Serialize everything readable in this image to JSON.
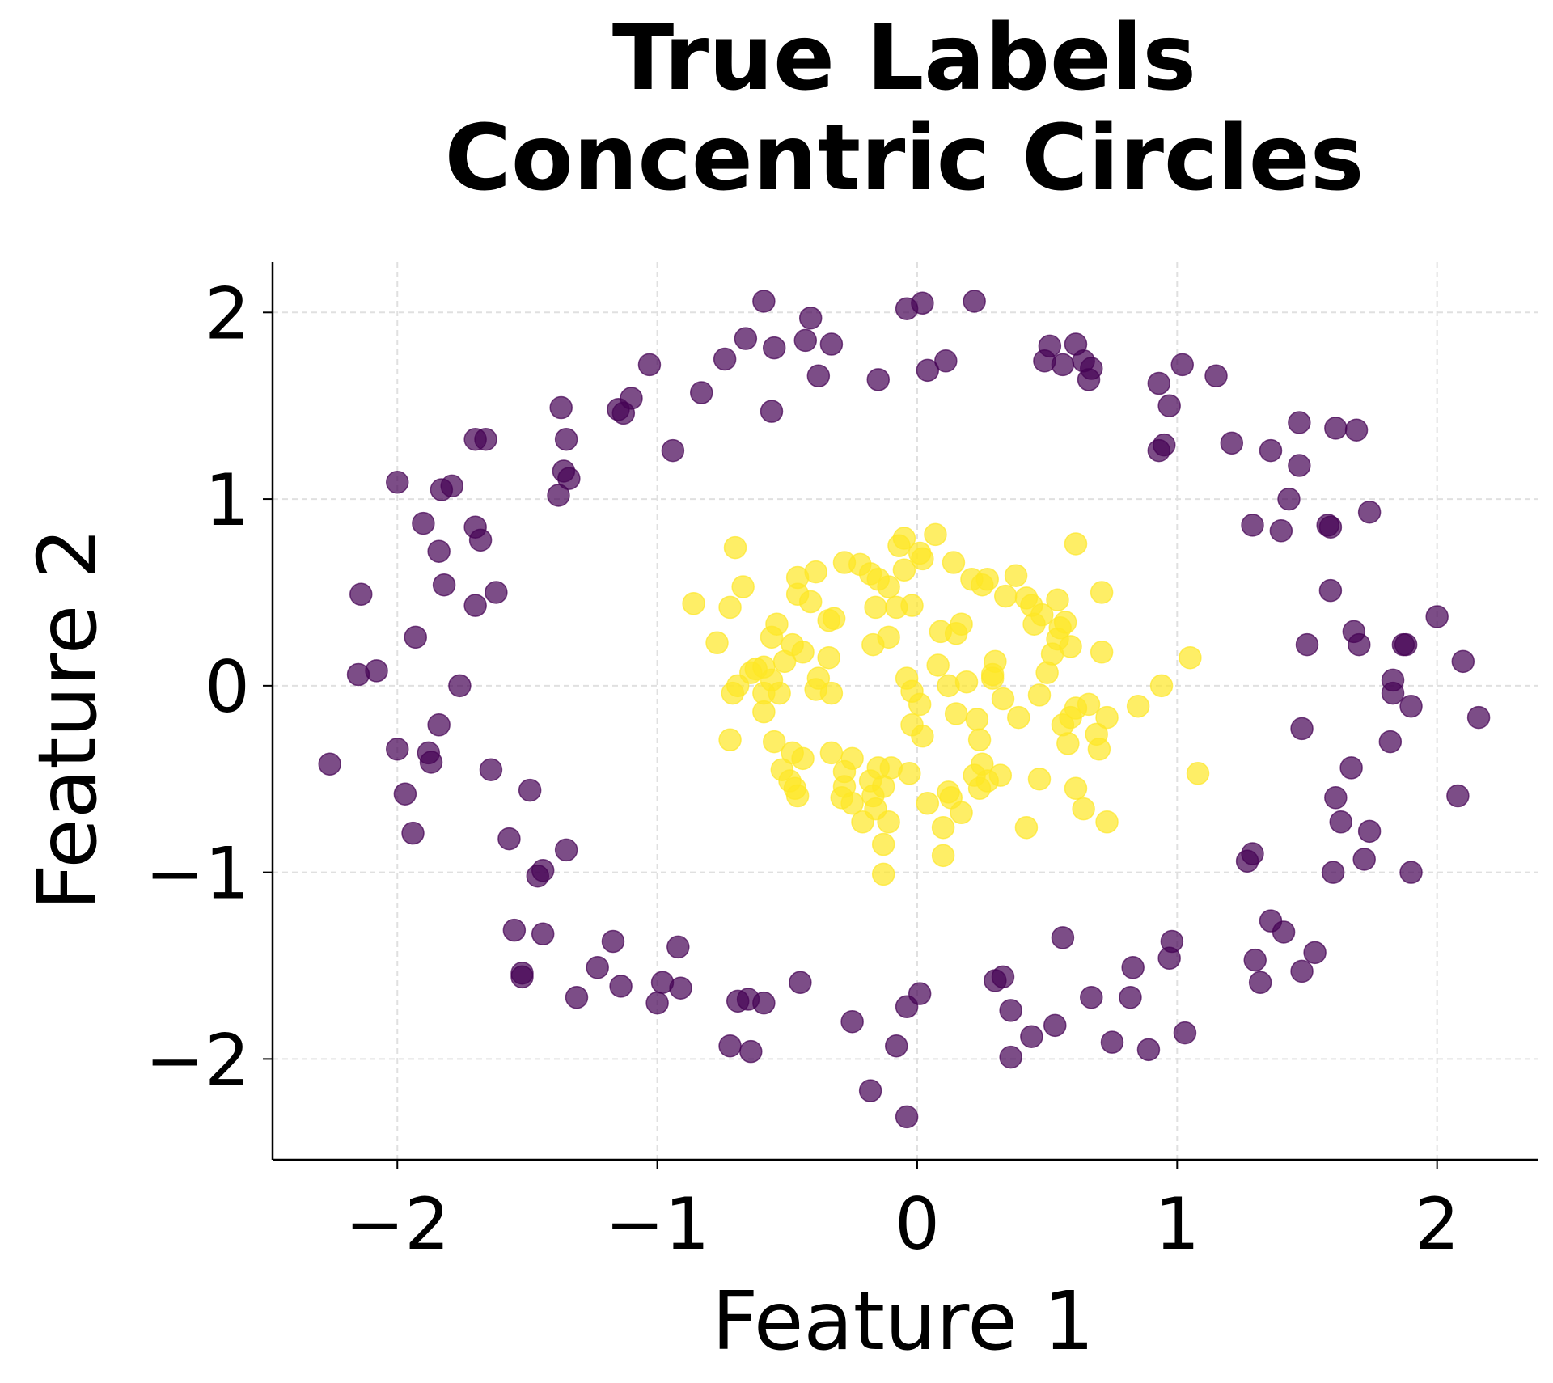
{
  "chart_data": {
    "type": "scatter",
    "title": "True Labels\nConcentric Circles",
    "xlabel": "Feature 1",
    "ylabel": "Feature 2",
    "xlim": [
      -2.48,
      2.39
    ],
    "ylim": [
      -2.54,
      2.27
    ],
    "xticks": [
      {
        "value": -2,
        "label": "−2"
      },
      {
        "value": -1,
        "label": "−1"
      },
      0,
      1,
      2
    ],
    "yticks": [
      {
        "value": -2,
        "label": "−2"
      },
      {
        "value": -1,
        "label": "−1"
      },
      0,
      1,
      2
    ],
    "grid": true,
    "alpha": 0.7,
    "series": [
      {
        "color": "#440154",
        "x": [
          -0.59,
          -0.04,
          0.02,
          0.22,
          -0.41,
          -0.66,
          -0.55,
          -0.43,
          -0.33,
          -1.03,
          -0.74,
          -0.38,
          -0.15,
          0.04,
          0.11,
          0.51,
          0.61,
          0.49,
          0.56,
          0.64,
          0.67,
          0.66,
          0.93,
          1.02,
          1.15,
          0.97,
          -0.83,
          -1.1,
          -1.15,
          -1.13,
          -0.56,
          -1.37,
          -1.35,
          -0.94,
          -1.7,
          -1.66,
          -1.36,
          -1.34,
          -1.38,
          -2.0,
          -1.83,
          -1.79,
          -1.9,
          -1.7,
          -1.68,
          -1.84,
          -1.82,
          -1.7,
          -1.62,
          -2.14,
          -1.93,
          -2.15,
          -2.08,
          -1.76,
          -1.84,
          -2.0,
          -1.88,
          -1.87,
          -2.26,
          -1.97,
          -1.64,
          -1.49,
          -1.94,
          -1.57,
          -1.35,
          -1.44,
          -1.46,
          0.93,
          0.95,
          1.21,
          1.36,
          1.47,
          1.61,
          1.69,
          1.47,
          1.43,
          1.29,
          1.4,
          1.58,
          1.59,
          1.74,
          1.59,
          2.0,
          1.5,
          1.68,
          1.7,
          1.87,
          1.88,
          2.1,
          1.83,
          1.83,
          1.9,
          2.16,
          1.48,
          1.82,
          1.67,
          2.08,
          1.61,
          1.63,
          1.74,
          1.72,
          1.6,
          1.9,
          1.29,
          1.27,
          -1.55,
          -1.44,
          -1.52,
          -1.52,
          -1.23,
          -1.17,
          -1.31,
          -1.14,
          -0.92,
          -0.98,
          -0.91,
          -1.0,
          -0.69,
          -0.65,
          -0.59,
          -0.45,
          -0.72,
          -0.64,
          -0.25,
          -0.04,
          0.01,
          -0.08,
          -0.18,
          -0.04,
          0.3,
          0.33,
          0.36,
          0.56,
          0.53,
          0.44,
          0.36,
          0.67,
          0.75,
          0.83,
          0.82,
          0.89,
          0.98,
          0.97,
          1.03,
          1.36,
          1.41,
          1.3,
          1.32,
          1.48,
          1.53
        ],
        "y": [
          2.06,
          2.02,
          2.05,
          2.06,
          1.97,
          1.86,
          1.81,
          1.85,
          1.83,
          1.72,
          1.75,
          1.66,
          1.64,
          1.69,
          1.74,
          1.82,
          1.83,
          1.74,
          1.72,
          1.74,
          1.7,
          1.64,
          1.62,
          1.72,
          1.66,
          1.5,
          1.57,
          1.54,
          1.48,
          1.46,
          1.47,
          1.49,
          1.32,
          1.26,
          1.32,
          1.32,
          1.15,
          1.11,
          1.02,
          1.09,
          1.05,
          1.07,
          0.87,
          0.85,
          0.78,
          0.72,
          0.54,
          0.43,
          0.5,
          0.49,
          0.26,
          0.06,
          0.08,
          0.0,
          -0.21,
          -0.34,
          -0.36,
          -0.41,
          -0.42,
          -0.58,
          -0.45,
          -0.56,
          -0.79,
          -0.82,
          -0.88,
          -0.99,
          -1.02,
          1.26,
          1.29,
          1.3,
          1.26,
          1.41,
          1.38,
          1.37,
          1.18,
          1.0,
          0.86,
          0.83,
          0.86,
          0.85,
          0.93,
          0.51,
          0.37,
          0.22,
          0.29,
          0.22,
          0.22,
          0.22,
          0.13,
          0.03,
          -0.04,
          -0.11,
          -0.17,
          -0.23,
          -0.3,
          -0.44,
          -0.59,
          -0.6,
          -0.73,
          -0.78,
          -0.93,
          -1.0,
          -1.0,
          -0.9,
          -0.94,
          -1.31,
          -1.33,
          -1.54,
          -1.56,
          -1.51,
          -1.37,
          -1.67,
          -1.61,
          -1.4,
          -1.59,
          -1.62,
          -1.7,
          -1.69,
          -1.68,
          -1.7,
          -1.59,
          -1.93,
          -1.96,
          -1.8,
          -1.72,
          -1.65,
          -1.93,
          -2.17,
          -2.31,
          -1.58,
          -1.56,
          -1.74,
          -1.35,
          -1.82,
          -1.88,
          -1.99,
          -1.67,
          -1.91,
          -1.51,
          -1.67,
          -1.95,
          -1.37,
          -1.46,
          -1.86,
          -1.26,
          -1.32,
          -1.47,
          -1.59,
          -1.53,
          -1.43
        ]
      },
      {
        "color": "#fde725",
        "x": [
          -0.05,
          -0.07,
          0.07,
          -0.7,
          0.61,
          -0.28,
          -0.22,
          -0.18,
          -0.15,
          -0.05,
          0.02,
          0.01,
          0.14,
          0.21,
          0.25,
          0.27,
          0.38,
          0.34,
          0.42,
          0.44,
          0.71,
          -0.67,
          -0.72,
          -0.86,
          -0.46,
          -0.39,
          -0.46,
          -0.41,
          -0.11,
          -0.16,
          -0.08,
          -0.02,
          -0.34,
          -0.32,
          -0.54,
          -0.56,
          0.09,
          0.15,
          0.17,
          0.45,
          0.48,
          0.55,
          0.57,
          0.54,
          0.52,
          0.5,
          0.59,
          0.71,
          -0.11,
          -0.17,
          -0.77,
          -0.48,
          -0.44,
          -0.34,
          -0.51,
          -0.62,
          -0.59,
          -0.64,
          -0.69,
          -0.71,
          -0.56,
          -0.53,
          -0.59,
          -0.38,
          -0.39,
          -0.33,
          -0.04,
          -0.02,
          0.08,
          0.12,
          0.3,
          0.29,
          0.29,
          0.19,
          0.33,
          0.47,
          0.94,
          1.05,
          0.85,
          0.73,
          0.61,
          0.66,
          0.59,
          0.69,
          0.56,
          0.58,
          0.7,
          0.39,
          0.01,
          -0.02,
          0.02,
          0.15,
          0.23,
          0.24,
          0.25,
          0.22,
          0.24,
          0.32,
          0.27,
          -0.59,
          -0.55,
          -0.72,
          -0.48,
          -0.44,
          -0.33,
          -0.25,
          -0.28,
          -0.52,
          -0.49,
          -0.47,
          -0.46,
          -0.28,
          -0.29,
          -0.25,
          -0.15,
          -0.1,
          -0.03,
          -0.18,
          -0.13,
          -0.17,
          -0.16,
          -0.21,
          -0.11,
          -0.13,
          -0.13,
          0.04,
          0.12,
          0.13,
          0.17,
          0.1,
          0.1,
          0.42,
          0.47,
          0.61,
          0.64,
          0.73,
          1.08,
          0.54
        ],
        "y": [
          0.79,
          0.75,
          0.81,
          0.74,
          0.76,
          0.66,
          0.65,
          0.6,
          0.57,
          0.62,
          0.68,
          0.71,
          0.66,
          0.57,
          0.54,
          0.57,
          0.59,
          0.48,
          0.47,
          0.43,
          0.5,
          0.53,
          0.42,
          0.44,
          0.58,
          0.61,
          0.49,
          0.45,
          0.53,
          0.42,
          0.42,
          0.43,
          0.35,
          0.36,
          0.33,
          0.26,
          0.29,
          0.28,
          0.33,
          0.33,
          0.38,
          0.31,
          0.34,
          0.25,
          0.17,
          0.07,
          0.21,
          0.18,
          0.26,
          0.22,
          0.23,
          0.22,
          0.18,
          0.15,
          0.13,
          0.09,
          0.1,
          0.07,
          0.0,
          -0.04,
          0.03,
          -0.04,
          -0.04,
          0.04,
          -0.02,
          -0.04,
          0.04,
          -0.03,
          0.11,
          0.0,
          0.13,
          0.06,
          0.04,
          0.02,
          -0.07,
          -0.05,
          0.0,
          0.15,
          -0.11,
          -0.17,
          -0.12,
          -0.1,
          -0.17,
          -0.26,
          -0.21,
          -0.31,
          -0.34,
          -0.17,
          -0.1,
          -0.21,
          -0.27,
          -0.15,
          -0.18,
          -0.29,
          -0.42,
          -0.48,
          -0.55,
          -0.48,
          -0.51,
          -0.14,
          -0.3,
          -0.29,
          -0.36,
          -0.39,
          -0.36,
          -0.39,
          -0.46,
          -0.45,
          -0.51,
          -0.55,
          -0.59,
          -0.54,
          -0.6,
          -0.63,
          -0.44,
          -0.44,
          -0.47,
          -0.51,
          -0.54,
          -0.59,
          -0.66,
          -0.73,
          -0.73,
          -0.85,
          -1.01,
          -0.63,
          -0.57,
          -0.6,
          -0.68,
          -0.76,
          -0.91,
          -0.76,
          -0.5,
          -0.55,
          -0.66,
          -0.73,
          -0.47,
          0.46
        ]
      }
    ]
  }
}
